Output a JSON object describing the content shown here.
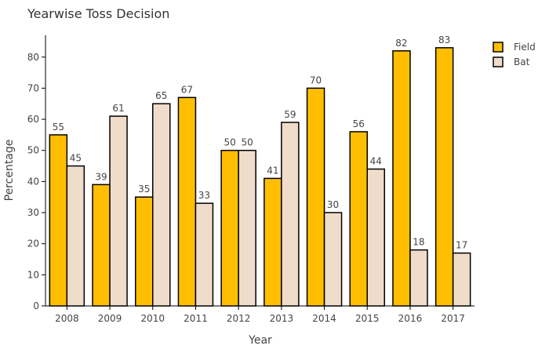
{
  "chart_data": {
    "type": "bar",
    "title": "Yearwise Toss Decision",
    "xlabel": "Year",
    "ylabel": "Percentage",
    "categories": [
      "2008",
      "2009",
      "2010",
      "2011",
      "2012",
      "2013",
      "2014",
      "2015",
      "2016",
      "2017"
    ],
    "series": [
      {
        "name": "Field",
        "color": "#ffbf00",
        "values": [
          55,
          39,
          35,
          67,
          50,
          41,
          70,
          56,
          82,
          83
        ]
      },
      {
        "name": "Bat",
        "color": "#f0dccb",
        "values": [
          45,
          61,
          65,
          33,
          50,
          59,
          30,
          44,
          18,
          17
        ]
      }
    ],
    "ylim": [
      0,
      87
    ],
    "yticks": [
      0,
      10,
      20,
      30,
      40,
      50,
      60,
      70,
      80
    ],
    "grid": false,
    "legend_position": "top-right"
  }
}
